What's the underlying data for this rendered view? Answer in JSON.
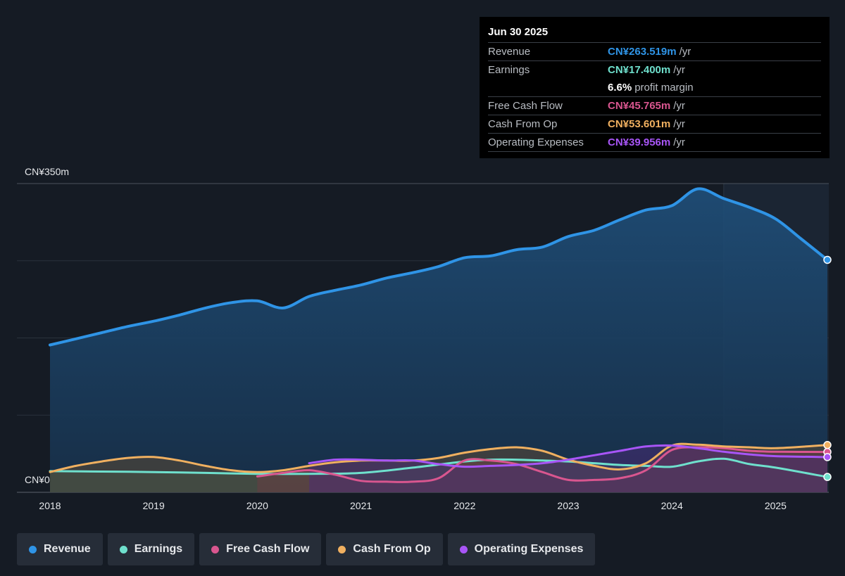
{
  "tooltip": {
    "date": "Jun 30 2025",
    "rows": [
      {
        "label": "Revenue",
        "value": "CN¥263.519m",
        "unit": "/yr",
        "color": "#2f94e6"
      },
      {
        "label": "Earnings",
        "value": "CN¥17.400m",
        "unit": "/yr",
        "color": "#6fe0cd"
      },
      {
        "label": "",
        "value": "6.6%",
        "unit": "profit margin",
        "color": "#ffffff"
      },
      {
        "label": "Free Cash Flow",
        "value": "CN¥45.765m",
        "unit": "/yr",
        "color": "#d9568f"
      },
      {
        "label": "Cash From Op",
        "value": "CN¥53.601m",
        "unit": "/yr",
        "color": "#f0b060"
      },
      {
        "label": "Operating Expenses",
        "value": "CN¥39.956m",
        "unit": "/yr",
        "color": "#a855f7"
      }
    ]
  },
  "legend": [
    {
      "label": "Revenue",
      "color": "#2f94e6"
    },
    {
      "label": "Earnings",
      "color": "#6fe0cd"
    },
    {
      "label": "Free Cash Flow",
      "color": "#d9568f"
    },
    {
      "label": "Cash From Op",
      "color": "#f0b060"
    },
    {
      "label": "Operating Expenses",
      "color": "#a855f7"
    }
  ],
  "chart_data": {
    "type": "area",
    "y_top_label": "CN¥350m",
    "y_zero_label": "CN¥0",
    "ylim": [
      0,
      350
    ],
    "xlim": [
      2018,
      2025.5
    ],
    "x_ticks": [
      2018,
      2019,
      2020,
      2021,
      2022,
      2023,
      2024,
      2025
    ],
    "x_tick_labels": [
      "2018",
      "2019",
      "2020",
      "2021",
      "2022",
      "2023",
      "2024",
      "2025"
    ],
    "forecast_shade_start": 2024.5,
    "series": [
      {
        "name": "Revenue",
        "color": "#2f94e6",
        "fill": true,
        "points": [
          [
            2018,
            167
          ],
          [
            2018.25,
            174
          ],
          [
            2018.5,
            181
          ],
          [
            2018.75,
            188
          ],
          [
            2019,
            194
          ],
          [
            2019.25,
            201
          ],
          [
            2019.5,
            209
          ],
          [
            2019.75,
            215
          ],
          [
            2020,
            217
          ],
          [
            2020.25,
            209
          ],
          [
            2020.5,
            222
          ],
          [
            2020.75,
            229
          ],
          [
            2021,
            235
          ],
          [
            2021.25,
            243
          ],
          [
            2021.5,
            249
          ],
          [
            2021.75,
            256
          ],
          [
            2022,
            266
          ],
          [
            2022.25,
            268
          ],
          [
            2022.5,
            275
          ],
          [
            2022.75,
            278
          ],
          [
            2023,
            290
          ],
          [
            2023.25,
            297
          ],
          [
            2023.5,
            309
          ],
          [
            2023.75,
            320
          ],
          [
            2024,
            325
          ],
          [
            2024.25,
            344
          ],
          [
            2024.5,
            333
          ],
          [
            2024.75,
            323
          ],
          [
            2025,
            310
          ],
          [
            2025.25,
            287
          ],
          [
            2025.5,
            263.519
          ]
        ]
      },
      {
        "name": "Earnings",
        "color": "#6fe0cd",
        "fill": true,
        "points": [
          [
            2018,
            24
          ],
          [
            2018.5,
            23.5
          ],
          [
            2019,
            23
          ],
          [
            2019.5,
            22
          ],
          [
            2020,
            21
          ],
          [
            2020.5,
            21
          ],
          [
            2021,
            22
          ],
          [
            2021.5,
            28
          ],
          [
            2022,
            35
          ],
          [
            2022.25,
            37
          ],
          [
            2022.5,
            37
          ],
          [
            2022.75,
            36
          ],
          [
            2023,
            35
          ],
          [
            2023.25,
            33
          ],
          [
            2023.5,
            31
          ],
          [
            2023.75,
            30
          ],
          [
            2024,
            29
          ],
          [
            2024.25,
            35
          ],
          [
            2024.5,
            38
          ],
          [
            2024.75,
            32
          ],
          [
            2025,
            28
          ],
          [
            2025.5,
            17.4
          ]
        ]
      },
      {
        "name": "Free Cash Flow",
        "color": "#d9568f",
        "fill": true,
        "points": [
          [
            2020,
            18
          ],
          [
            2020.25,
            22
          ],
          [
            2020.5,
            25
          ],
          [
            2020.75,
            20
          ],
          [
            2021,
            13
          ],
          [
            2021.25,
            12
          ],
          [
            2021.5,
            12
          ],
          [
            2021.75,
            16
          ],
          [
            2022,
            36
          ],
          [
            2022.25,
            36
          ],
          [
            2022.5,
            32
          ],
          [
            2022.75,
            23
          ],
          [
            2023,
            14
          ],
          [
            2023.25,
            14
          ],
          [
            2023.5,
            16
          ],
          [
            2023.75,
            25
          ],
          [
            2024,
            48
          ],
          [
            2024.25,
            51
          ],
          [
            2024.5,
            50
          ],
          [
            2024.75,
            47
          ],
          [
            2025,
            46
          ],
          [
            2025.5,
            45.765
          ]
        ]
      },
      {
        "name": "Cash From Op",
        "color": "#f0b060",
        "fill": true,
        "points": [
          [
            2018,
            23
          ],
          [
            2018.25,
            30
          ],
          [
            2018.5,
            35
          ],
          [
            2018.75,
            39
          ],
          [
            2019,
            40
          ],
          [
            2019.25,
            36
          ],
          [
            2019.5,
            30
          ],
          [
            2019.75,
            25
          ],
          [
            2020,
            23
          ],
          [
            2020.25,
            25
          ],
          [
            2020.5,
            30
          ],
          [
            2020.75,
            34
          ],
          [
            2021,
            36
          ],
          [
            2021.25,
            36
          ],
          [
            2021.5,
            36
          ],
          [
            2021.75,
            39
          ],
          [
            2022,
            45
          ],
          [
            2022.25,
            49
          ],
          [
            2022.5,
            51
          ],
          [
            2022.75,
            47
          ],
          [
            2023,
            37
          ],
          [
            2023.25,
            30
          ],
          [
            2023.5,
            26
          ],
          [
            2023.75,
            33
          ],
          [
            2024,
            53
          ],
          [
            2024.25,
            54
          ],
          [
            2024.5,
            52
          ],
          [
            2024.75,
            51
          ],
          [
            2025,
            50
          ],
          [
            2025.5,
            53.601
          ]
        ]
      },
      {
        "name": "Operating Expenses",
        "color": "#a855f7",
        "fill": true,
        "points": [
          [
            2020.5,
            33
          ],
          [
            2020.75,
            37
          ],
          [
            2021,
            37
          ],
          [
            2021.25,
            36
          ],
          [
            2021.5,
            36
          ],
          [
            2021.75,
            32
          ],
          [
            2022,
            29
          ],
          [
            2022.25,
            30
          ],
          [
            2022.5,
            31
          ],
          [
            2022.75,
            33
          ],
          [
            2023,
            37
          ],
          [
            2023.25,
            42
          ],
          [
            2023.5,
            47
          ],
          [
            2023.75,
            52
          ],
          [
            2024,
            53
          ],
          [
            2024.25,
            50
          ],
          [
            2024.5,
            46
          ],
          [
            2024.75,
            43
          ],
          [
            2025,
            41
          ],
          [
            2025.5,
            39.956
          ]
        ]
      }
    ]
  }
}
